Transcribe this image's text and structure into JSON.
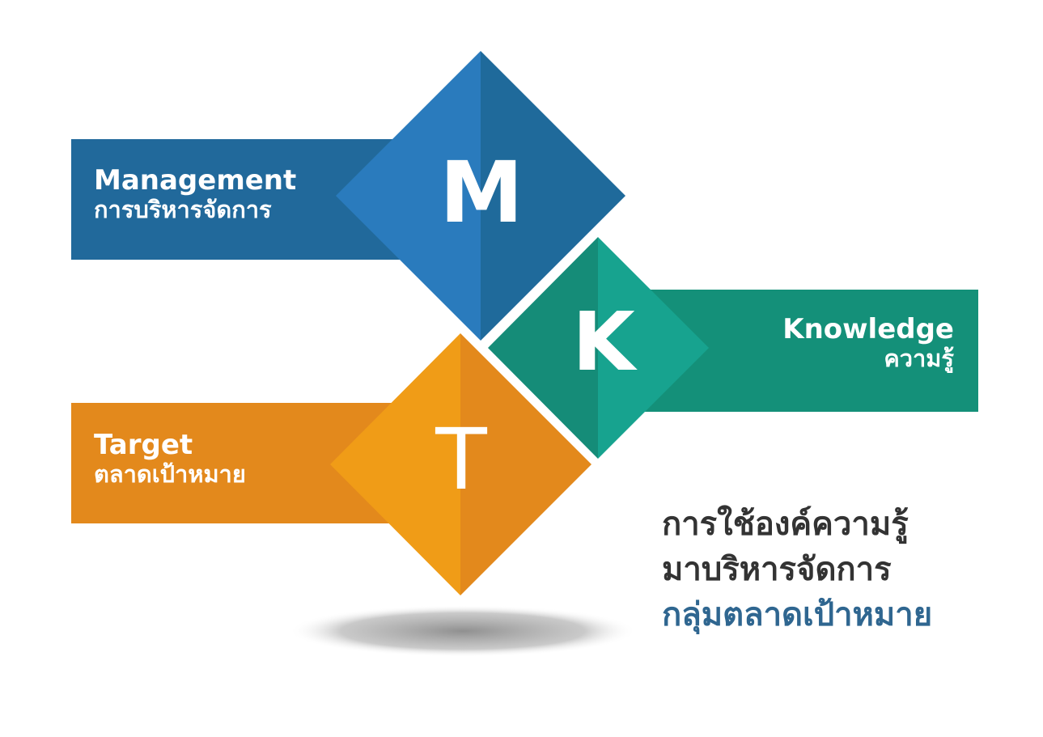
{
  "colors": {
    "management_band": "#21699b",
    "management_diamond_left": "#2a7bbd",
    "management_diamond_right": "#1f6a9b",
    "knowledge_band": "#149079",
    "knowledge_diamond_left": "#158c78",
    "knowledge_diamond_right": "#17a38f",
    "target_band": "#e3891c",
    "target_diamond_left": "#f09c17",
    "target_diamond_right": "#e3891c",
    "tagline_dark": "#333333",
    "tagline_accent": "#2f6690",
    "shadow": "#8a8a8a"
  },
  "management": {
    "letter": "M",
    "title_en": "Management",
    "title_th": "การบริหารจัดการ"
  },
  "knowledge": {
    "letter": "K",
    "title_en": "Knowledge",
    "title_th": "ความรู้"
  },
  "target": {
    "letter": "T",
    "title_en": "Target",
    "title_th": "ตลาดเป้าหมาย"
  },
  "tagline": {
    "line1": "การใช้องค์ความรู้",
    "line2": "มาบริหารจัดการ",
    "line3": "กลุ่มตลาดเป้าหมาย"
  }
}
